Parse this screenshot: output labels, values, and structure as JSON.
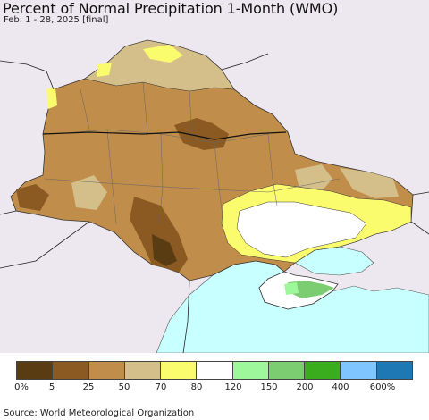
{
  "header": {
    "title": "Percent of Normal Precipitation 1-Month (WMO)",
    "subtitle": "Feb. 1 - 28, 2025 [final]"
  },
  "legend": {
    "bins": [
      {
        "label": "0%",
        "color": "#5a3c12"
      },
      {
        "label": "5",
        "color": "#8b5a22"
      },
      {
        "label": "25",
        "color": "#c18d4a"
      },
      {
        "label": "50",
        "color": "#d4bf8a"
      },
      {
        "label": "70",
        "color": "#fbfb6e"
      },
      {
        "label": "80",
        "color": "#ffffff"
      },
      {
        "label": "120",
        "color": "#9ef79a"
      },
      {
        "label": "150",
        "color": "#7ccd72"
      },
      {
        "label": "200",
        "color": "#3aad1e"
      },
      {
        "label": "400",
        "color": "#7fc5ff"
      },
      {
        "label": "600%",
        "color": "#1e78b4"
      }
    ]
  },
  "colors": {
    "land_outside": "#ede8ef",
    "sea": "#c8ffff",
    "borders": "#222222"
  },
  "footer": {
    "source": "Source: World Meteorological Organization"
  }
}
